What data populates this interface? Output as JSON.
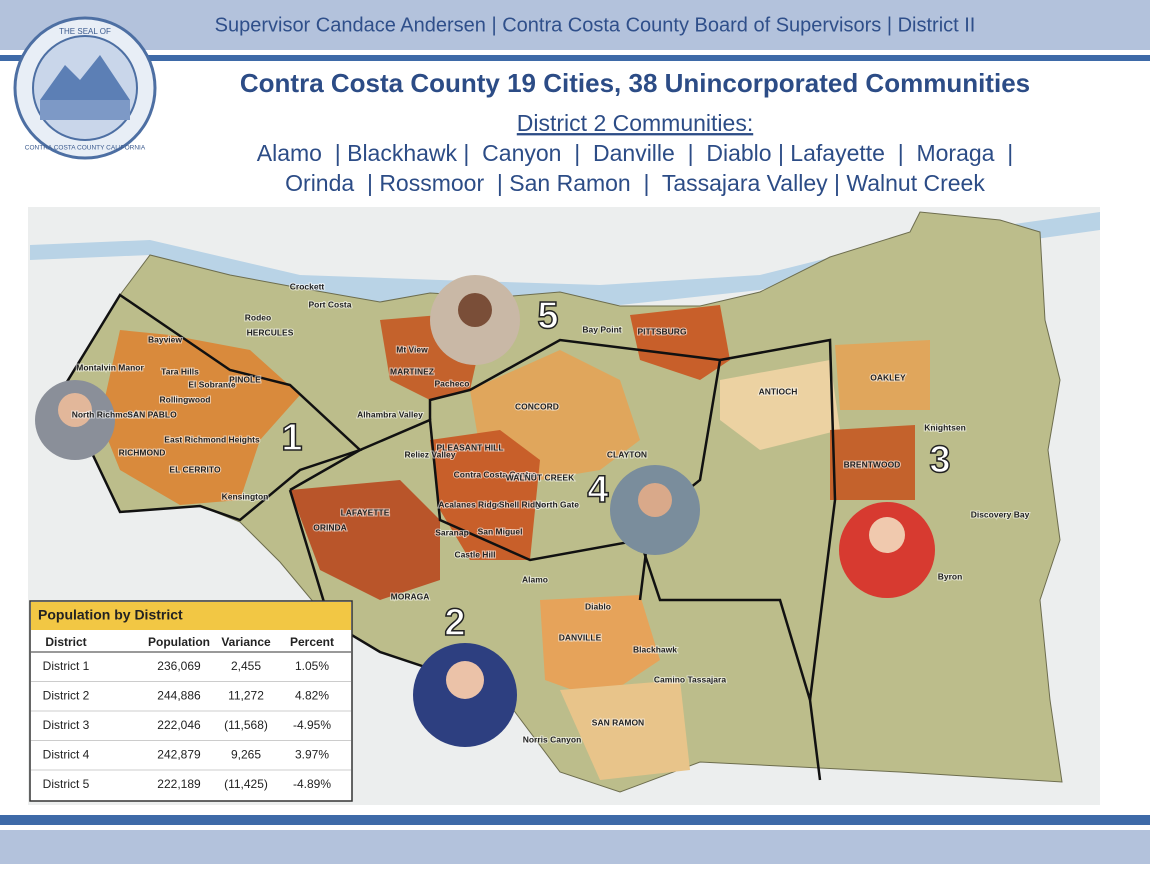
{
  "header": {
    "banner": "Supervisor Candace Andersen | Contra Costa County Board of Supervisors | District II",
    "seal": {
      "top": "THE SEAL OF",
      "bottom": "CONTRA COSTA COUNTY CALIFORNIA"
    },
    "title": "Contra Costa County 19 Cities, 38 Unincorporated Communities",
    "subtitle": "District 2 Communities:",
    "communities": [
      "Alamo  | Blackhawk |  Canyon  |  Danville  |  Diablo | Lafayette  |  Moraga  |",
      "Orinda  | Rossmoor  | San Ramon  |  Tassajara Valley | Walnut Creek"
    ]
  },
  "map": {
    "districts": [
      "1",
      "2",
      "3",
      "4",
      "5"
    ],
    "places": [
      "Bayview",
      "Montalvin Manor",
      "Tara Hills",
      "El Sobrante",
      "PINOLE",
      "HERCULES",
      "Rodeo",
      "Crockett",
      "Port Costa",
      "Rollingwood",
      "North Richmond",
      "SAN PABLO",
      "RICHMOND",
      "East Richmond Heights",
      "EL CERRITO",
      "Kensington",
      "MARTINEZ",
      "Mt View",
      "Pacheco",
      "Alhambra Valley",
      "CONCORD",
      "PLEASANT HILL",
      "Reliez Valley",
      "Contra Costa Centre",
      "WALNUT CREEK",
      "CLAYTON",
      "LAFAYETTE",
      "ORINDA",
      "Acalanes Ridge",
      "Shell Ridge",
      "North Gate",
      "San Miguel",
      "Saranap",
      "Castle Hill",
      "Alamo",
      "MORAGA",
      "Diablo",
      "DANVILLE",
      "Blackhawk",
      "Camino Tassajara",
      "SAN RAMON",
      "Norris Canyon",
      "Bay Point",
      "PITTSBURG",
      "ANTIOCH",
      "OAKLEY",
      "BRENTWOOD",
      "Knightsen",
      "Discovery Bay",
      "Byron"
    ]
  },
  "table": {
    "title": "Population by District",
    "columns": [
      "District",
      "Population",
      "Variance",
      "Percent"
    ],
    "rows": [
      [
        "District 1",
        "236,069",
        "2,455",
        "1.05%"
      ],
      [
        "District 2",
        "244,886",
        "11,272",
        "4.82%"
      ],
      [
        "District 3",
        "222,046",
        "(11,568)",
        "-4.95%"
      ],
      [
        "District 4",
        "242,879",
        "9,265",
        "3.97%"
      ],
      [
        "District 5",
        "222,189",
        "(11,425)",
        "-4.89%"
      ]
    ]
  }
}
